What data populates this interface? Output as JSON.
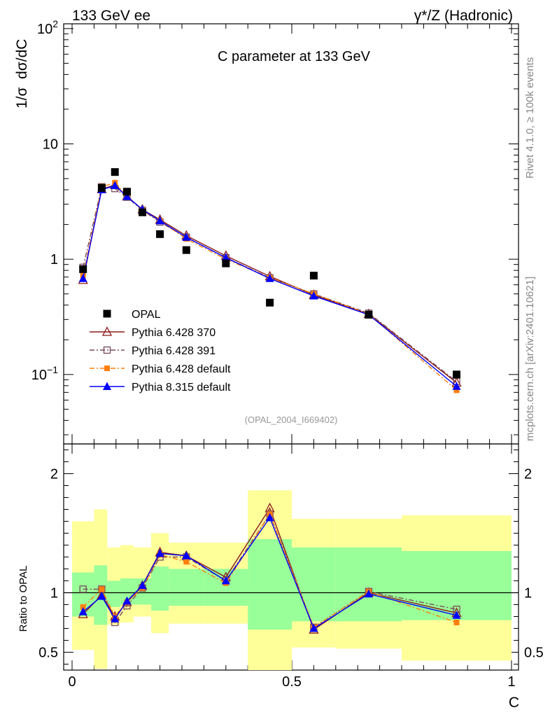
{
  "header": {
    "left": "133 GeV ee",
    "right": "γ*/Z (Hadronic)"
  },
  "side_labels": {
    "rivet": "Rivet 4.1.0, ≥ 100k events",
    "source": "mcplots.cern.ch [arXiv:2401.10621]"
  },
  "chart_data": [
    {
      "name": "main",
      "type": "scatter",
      "title": "C parameter at 133 GeV",
      "analysis_tag": "(OPAL_2004_I669402)",
      "xlabel": "C",
      "ylabel": "1/σ  dσ/dC",
      "yscale": "log",
      "xlim": [
        0,
        1
      ],
      "ylim": [
        0.025,
        110
      ],
      "yticks": [
        {
          "value": 0.1,
          "base": "10",
          "exp": "−1"
        },
        {
          "value": 1,
          "label": "1"
        },
        {
          "value": 10,
          "label": "10"
        },
        {
          "value": 100,
          "base": "10",
          "exp": "2"
        }
      ],
      "x": [
        0.025,
        0.0675,
        0.0975,
        0.125,
        0.16,
        0.2,
        0.26,
        0.35,
        0.45,
        0.55,
        0.675,
        0.875
      ],
      "series": [
        {
          "name": "OPAL",
          "color": "#000000",
          "marker": "square-filled",
          "line": "none",
          "values": [
            0.82,
            4.15,
            5.7,
            3.85,
            2.55,
            1.65,
            1.2,
            0.92,
            0.42,
            0.72,
            0.33,
            0.1
          ]
        },
        {
          "name": "Pythia 6.428 370",
          "color": "#8b1a1a",
          "marker": "triangle-open",
          "line": "solid",
          "values": [
            0.66,
            4.05,
            4.4,
            3.5,
            2.7,
            2.2,
            1.6,
            1.07,
            0.71,
            0.49,
            0.335,
            0.085
          ]
        },
        {
          "name": "Pythia 6.428 391",
          "color": "#7a4a5a",
          "marker": "square-open",
          "line": "dashdot",
          "values": [
            0.85,
            4.25,
            4.1,
            3.45,
            2.65,
            2.1,
            1.55,
            1.03,
            0.69,
            0.5,
            0.34,
            0.087
          ]
        },
        {
          "name": "Pythia 6.428 default",
          "color": "#ff7f0e",
          "marker": "square-filled-small",
          "line": "dashdot",
          "values": [
            0.72,
            4.25,
            4.6,
            3.55,
            2.65,
            2.15,
            1.5,
            1.0,
            0.69,
            0.5,
            0.335,
            0.073
          ]
        },
        {
          "name": "Pythia 8.315 default",
          "color": "#0000ff",
          "marker": "triangle-filled",
          "line": "solid",
          "values": [
            0.68,
            4.0,
            4.35,
            3.5,
            2.7,
            2.15,
            1.55,
            1.03,
            0.68,
            0.48,
            0.33,
            0.079
          ]
        }
      ]
    },
    {
      "name": "ratio",
      "type": "line",
      "ylabel": "Ratio to OPAL",
      "xlabel": "C",
      "xlim": [
        0,
        1
      ],
      "ylim": [
        0.35,
        2.25
      ],
      "yticks": [
        0.5,
        1,
        2
      ],
      "xticks": [
        {
          "value": 0,
          "label": "0"
        },
        {
          "value": 0.5,
          "label": "0.5"
        },
        {
          "value": 1,
          "label": "1"
        }
      ],
      "uncertainty_bins": [
        {
          "x0": 0.0,
          "x1": 0.05,
          "green": [
            0.8,
            1.17
          ],
          "yellow": [
            0.52,
            1.6
          ]
        },
        {
          "x0": 0.05,
          "x1": 0.08,
          "green": [
            0.73,
            1.23
          ],
          "yellow": [
            0.36,
            1.7
          ]
        },
        {
          "x0": 0.08,
          "x1": 0.11,
          "green": [
            0.88,
            1.1
          ],
          "yellow": [
            0.73,
            1.38
          ]
        },
        {
          "x0": 0.11,
          "x1": 0.14,
          "green": [
            0.9,
            1.12
          ],
          "yellow": [
            0.75,
            1.4
          ]
        },
        {
          "x0": 0.14,
          "x1": 0.18,
          "green": [
            0.9,
            1.12
          ],
          "yellow": [
            0.8,
            1.38
          ]
        },
        {
          "x0": 0.18,
          "x1": 0.22,
          "green": [
            0.85,
            1.22
          ],
          "yellow": [
            0.66,
            1.5
          ]
        },
        {
          "x0": 0.22,
          "x1": 0.3,
          "green": [
            0.89,
            1.2
          ],
          "yellow": [
            0.74,
            1.42
          ]
        },
        {
          "x0": 0.3,
          "x1": 0.4,
          "green": [
            0.89,
            1.2
          ],
          "yellow": [
            0.74,
            1.42
          ]
        },
        {
          "x0": 0.4,
          "x1": 0.5,
          "green": [
            0.69,
            1.45
          ],
          "yellow": [
            0.35,
            1.86
          ]
        },
        {
          "x0": 0.5,
          "x1": 0.6,
          "green": [
            0.76,
            1.38
          ],
          "yellow": [
            0.54,
            1.62
          ]
        },
        {
          "x0": 0.6,
          "x1": 0.75,
          "green": [
            0.76,
            1.38
          ],
          "yellow": [
            0.53,
            1.62
          ]
        },
        {
          "x0": 0.75,
          "x1": 1.0,
          "green": [
            0.77,
            1.35
          ],
          "yellow": [
            0.43,
            1.65
          ]
        }
      ],
      "series": [
        {
          "name": "Pythia 6.428 370",
          "color": "#8b1a1a",
          "marker": "triangle-open",
          "line": "solid",
          "values": [
            0.82,
            0.98,
            0.8,
            0.92,
            1.06,
            1.34,
            1.31,
            1.13,
            1.71,
            0.69,
            1.0,
            0.83
          ]
        },
        {
          "name": "Pythia 6.428 391",
          "color": "#7a4a5a",
          "marker": "square-open",
          "line": "dashdot",
          "values": [
            1.03,
            1.03,
            0.75,
            0.89,
            1.04,
            1.3,
            1.3,
            1.1,
            1.66,
            0.71,
            1.01,
            0.86
          ]
        },
        {
          "name": "Pythia 6.428 default",
          "color": "#ff7f0e",
          "marker": "square-filled-small",
          "line": "dashdot",
          "values": [
            0.88,
            1.03,
            0.8,
            0.92,
            1.04,
            1.32,
            1.26,
            1.08,
            1.66,
            0.71,
            1.01,
            0.75
          ]
        },
        {
          "name": "Pythia 8.315 default",
          "color": "#0000ff",
          "marker": "triangle-filled",
          "line": "solid",
          "values": [
            0.84,
            0.97,
            0.78,
            0.93,
            1.06,
            1.33,
            1.31,
            1.1,
            1.63,
            0.7,
            0.99,
            0.81
          ]
        }
      ]
    }
  ]
}
